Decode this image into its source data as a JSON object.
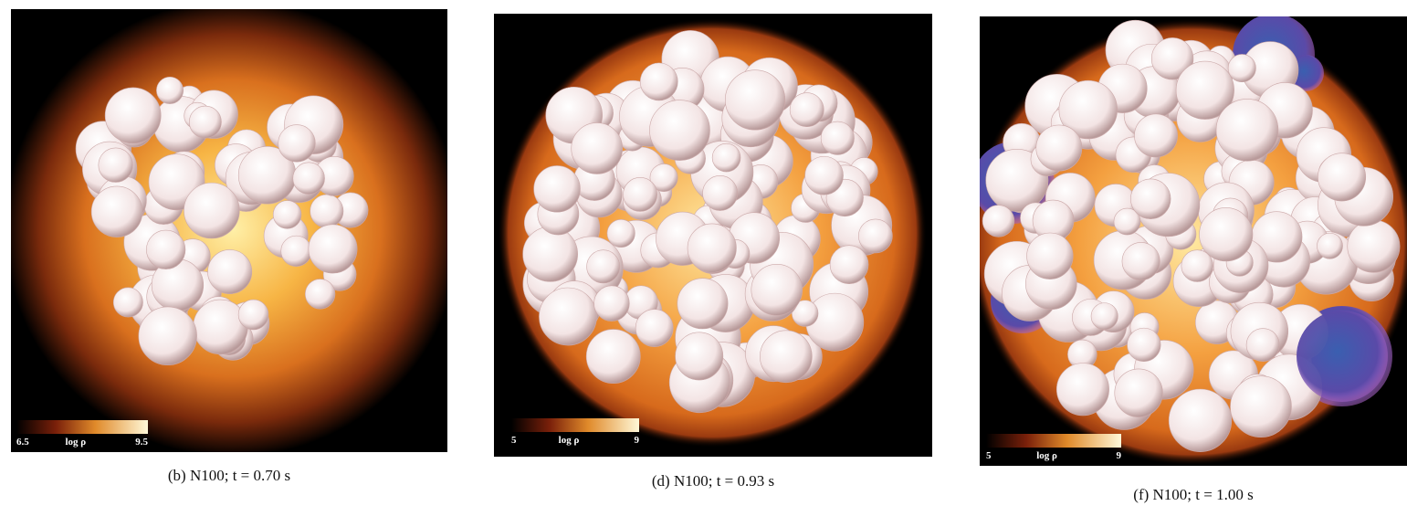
{
  "panels": [
    {
      "caption": "(b) N100; t = 0.70 s",
      "colorbar": {
        "min": "6.5",
        "label": "log ρ",
        "max": "9.5"
      }
    },
    {
      "caption": "(d) N100; t = 0.93 s",
      "colorbar": {
        "min": "5",
        "label": "log ρ",
        "max": "9"
      }
    },
    {
      "caption": "(f) N100; t = 1.00 s",
      "colorbar": {
        "min": "5",
        "label": "log ρ",
        "max": "9"
      }
    }
  ]
}
